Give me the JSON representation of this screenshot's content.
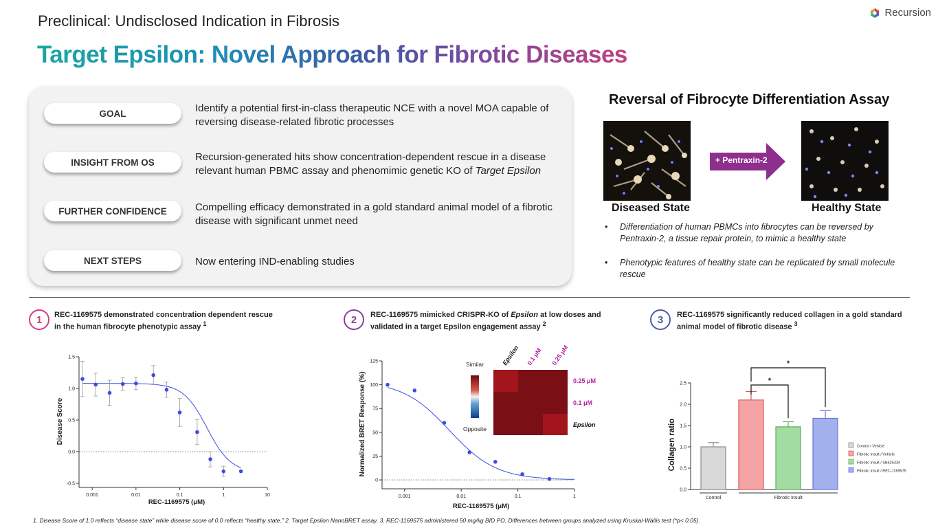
{
  "header": {
    "subtitle": "Preclinical: Undisclosed Indication in Fibrosis",
    "title": "Target Epsilon: Novel Approach for Fibrotic Diseases",
    "logo_text": "Recursion"
  },
  "panel": {
    "rows": [
      {
        "label": "GOAL",
        "text": "Identify a potential first-in-class therapeutic NCE with a novel MOA capable of reversing disease-related fibrotic processes"
      },
      {
        "label": "INSIGHT FROM OS",
        "text_pre": "Recursion-generated hits show concentration-dependent rescue in a disease relevant human PBMC assay and phenomimic genetic KO of ",
        "text_em": "Target Epsilon"
      },
      {
        "label": "FURTHER CONFIDENCE",
        "text": "Compelling efficacy demonstrated in a gold standard animal model of a fibrotic disease with significant unmet need"
      },
      {
        "label": "NEXT STEPS",
        "text": "Now entering IND-enabling studies"
      }
    ]
  },
  "assay": {
    "title": "Reversal of Fibrocyte Differentiation Assay",
    "arrow_label": "+ Pentraxin-2",
    "left_label": "Diseased State",
    "right_label": "Healthy State",
    "bullets": [
      "Differentiation of human PBMCs into fibrocytes can be reversed by Pentraxin-2, a tissue repair protein, to mimic a healthy state",
      "Phenotypic features of healthy state can be replicated by small molecule rescue"
    ]
  },
  "panels_bottom": [
    {
      "num": "1",
      "caption_line1": "REC-1169575 demonstrated concentration dependent rescue",
      "caption_line2": "in the human fibrocyte phenotypic assay ",
      "sup": "1"
    },
    {
      "num": "2",
      "caption_pre": "REC-1169575 mimicked CRISPR-KO of ",
      "caption_em": "Epsilon",
      "caption_post": " at low doses and",
      "caption_line2": "validated in a target Epsilon engagement assay ",
      "sup": "2"
    },
    {
      "num": "3",
      "caption_line1": "REC-1169575 significantly reduced collagen in a gold standard",
      "caption_line2": "animal model of fibrotic disease ",
      "sup": "3"
    }
  ],
  "colors": {
    "badge1": "#d6388a",
    "badge2": "#8a3d9c",
    "badge3": "#4b5aa8",
    "arrow": "#8e2f8e",
    "curve": "#3a4de0",
    "heat_dark": "#7a0f16",
    "heat_mid": "#a3151d",
    "heat_label": "#b01f9f"
  },
  "chart_data": [
    {
      "type": "scatter",
      "title": "",
      "xlabel": "REC-1169575 (μM)",
      "ylabel": "Disease Score",
      "xscale": "log",
      "xlim": [
        0.0005,
        10
      ],
      "ylim": [
        -0.5,
        1.5
      ],
      "xticks": [
        "0.001",
        "0.01",
        "0.1",
        "1",
        "10"
      ],
      "xtick_values": [
        0.001,
        0.01,
        0.1,
        1,
        10
      ],
      "yticks": [
        "-0.5",
        "0.0",
        "0.5",
        "1.0",
        "1.5"
      ],
      "ytick_values": [
        -0.5,
        0,
        0.5,
        1.0,
        1.5
      ],
      "x": [
        0.0006,
        0.0012,
        0.0025,
        0.005,
        0.01,
        0.025,
        0.05,
        0.1,
        0.25,
        0.5,
        1.0,
        2.5
      ],
      "y": [
        1.15,
        1.06,
        0.93,
        1.07,
        1.08,
        1.21,
        0.98,
        0.62,
        0.31,
        -0.12,
        -0.31,
        -0.31
      ],
      "err": [
        0.28,
        0.18,
        0.2,
        0.1,
        0.1,
        0.15,
        0.12,
        0.22,
        0.2,
        0.12,
        0.08,
        0.0
      ],
      "fit": {
        "top": 1.08,
        "bottom": -0.33,
        "ic50": 0.42,
        "hill": 1.6
      },
      "reference_line_y": 0
    },
    {
      "type": "scatter",
      "title": "",
      "xlabel": "REC-1169575 (μM)",
      "ylabel": "Normalized BRET Response (%)",
      "xscale": "log",
      "xlim": [
        0.0004,
        1
      ],
      "ylim": [
        -5,
        125
      ],
      "xticks": [
        "0.001",
        "0.01",
        "0.1",
        "1"
      ],
      "xtick_values": [
        0.001,
        0.01,
        0.1,
        1
      ],
      "yticks": [
        "0",
        "25",
        "50",
        "75",
        "100",
        "125"
      ],
      "ytick_values": [
        0,
        25,
        50,
        75,
        100,
        125
      ],
      "x": [
        0.0005,
        0.0015,
        0.005,
        0.014,
        0.04,
        0.12,
        0.36
      ],
      "y": [
        100,
        94,
        60,
        29,
        19,
        6,
        1
      ],
      "fit": {
        "top": 104,
        "bottom": 0,
        "ic50": 0.0062,
        "hill": 1.05
      },
      "reference_line_y": 0
    },
    {
      "type": "heatmap",
      "rows": [
        "0.25 μM",
        "0.1 μM",
        "Epsilon"
      ],
      "columns": [
        "Epsilon",
        "0.1 μM",
        "0.25 μM"
      ],
      "values": [
        [
          0.9,
          1.0,
          1.0
        ],
        [
          1.0,
          1.0,
          1.0
        ],
        [
          1.0,
          1.0,
          0.9
        ]
      ],
      "colorbar_top": "Similar",
      "colorbar_bottom": "Opposite"
    },
    {
      "type": "bar",
      "title": "",
      "xlabel": "",
      "ylabel": "Collagen ratio",
      "ylim": [
        0,
        2.5
      ],
      "yticks": [
        "0.0",
        "0.5",
        "1.0",
        "1.5",
        "2.0",
        "2.5"
      ],
      "ytick_values": [
        0,
        0.5,
        1.0,
        1.5,
        2.0,
        2.5
      ],
      "categories": [
        "Control / Vehicle",
        "Fibrotic Insult / Vehicle",
        "Fibrotic Insult / SB525334",
        "Fibrotic Insult / REC-1169575"
      ],
      "values": [
        1.0,
        2.1,
        1.47,
        1.67
      ],
      "errors": [
        0.1,
        0.2,
        0.12,
        0.18
      ],
      "colors": [
        "#d9d9d9",
        "#f4a4a4",
        "#a3dca3",
        "#a3b0ee"
      ],
      "edge_colors": [
        "#8c8c8c",
        "#e05555",
        "#5aae5a",
        "#6677d6"
      ],
      "group_labels": [
        "Control",
        "Fibrotic Insult"
      ],
      "significance": [
        "*",
        "*"
      ],
      "legend_position": "right"
    }
  ],
  "footnote": "1. Disease Score of 1.0 reflects “disease state” while disease score of 0.0 reflects “healthy state.”  2. Target Epsilon NanoBRET assay.  3. REC-1169575 administered 50 mg/kg BID PO. Differences between groups analyzed using Kruskal-Wallis test (*p< 0.05)."
}
